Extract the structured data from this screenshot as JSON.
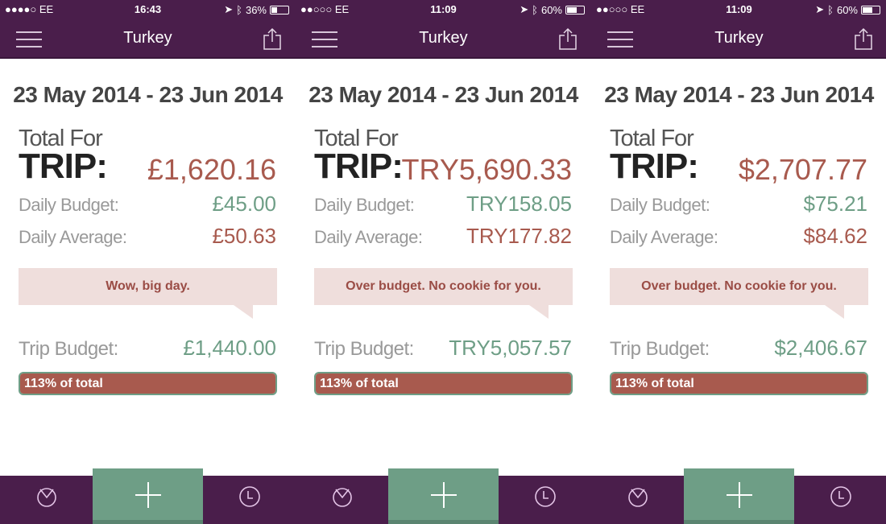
{
  "colors": {
    "header": "#4a1e4b",
    "accent_green": "#6e9e86",
    "accent_red": "#a85a4e",
    "bubble": "#efdedc"
  },
  "phones": [
    {
      "status": {
        "signal": "●●●●○ EE",
        "time": "16:43",
        "battery": "36%",
        "battery_level": 36
      },
      "header": {
        "title": "Turkey"
      },
      "date_range": "23 May 2014 - 23 Jun 2014",
      "total_for": "Total For",
      "trip": "TRIP:",
      "total": "£1,620.16",
      "daily_budget_label": "Daily Budget:",
      "daily_budget": "£45.00",
      "daily_average_label": "Daily Average:",
      "daily_average": "£50.63",
      "message": "Wow, big day.",
      "trip_budget_label": "Trip Budget:",
      "trip_budget": "£1,440.00",
      "progress_label": "113% of total",
      "progress_percent": 113
    },
    {
      "status": {
        "signal": "●●○○○ EE",
        "time": "11:09",
        "battery": "60%",
        "battery_level": 60
      },
      "header": {
        "title": "Turkey"
      },
      "date_range": "23 May 2014 - 23 Jun 2014",
      "total_for": "Total For",
      "trip": "TRIP:",
      "total": "TRY5,690.33",
      "daily_budget_label": "Daily Budget:",
      "daily_budget": "TRY158.05",
      "daily_average_label": "Daily Average:",
      "daily_average": "TRY177.82",
      "message": "Over budget. No cookie for you.",
      "trip_budget_label": "Trip Budget:",
      "trip_budget": "TRY5,057.57",
      "progress_label": "113% of total",
      "progress_percent": 113
    },
    {
      "status": {
        "signal": "●●○○○ EE",
        "time": "11:09",
        "battery": "60%",
        "battery_level": 60
      },
      "header": {
        "title": "Turkey"
      },
      "date_range": "23 May 2014 - 23 Jun 2014",
      "total_for": "Total For",
      "trip": "TRIP:",
      "total": "$2,707.77",
      "daily_budget_label": "Daily Budget:",
      "daily_budget": "$75.21",
      "daily_average_label": "Daily Average:",
      "daily_average": "$84.62",
      "message": "Over budget. No cookie for you.",
      "trip_budget_label": "Trip Budget:",
      "trip_budget": "$2,406.67",
      "progress_label": "113% of total",
      "progress_percent": 113
    }
  ]
}
